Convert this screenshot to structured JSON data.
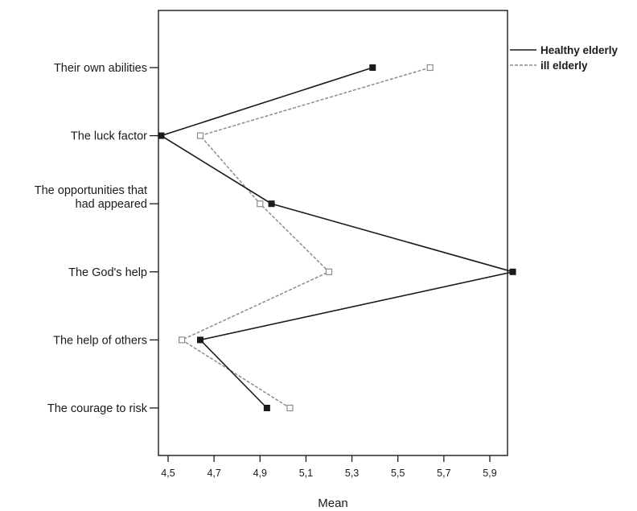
{
  "chart_data": {
    "type": "line",
    "orientation": "horizontal",
    "categories": [
      [
        "Their own abilities"
      ],
      [
        "The luck factor"
      ],
      [
        "The opportunities that",
        "had appeared"
      ],
      [
        "The God's help"
      ],
      [
        "The help of others"
      ],
      [
        "The courage to risk"
      ]
    ],
    "series": [
      {
        "name": "Healthy elderly",
        "color": "#1a1a1a",
        "line_style": "solid",
        "marker": "filled-square",
        "values": [
          5.39,
          4.47,
          4.95,
          6.0,
          4.64,
          4.93
        ]
      },
      {
        "name": "ill elderly",
        "color": "#8c8c8c",
        "line_style": "dashed",
        "marker": "open-square",
        "values": [
          5.64,
          4.64,
          4.9,
          5.2,
          4.56,
          5.03
        ]
      }
    ],
    "xlabel": "Mean",
    "xlim": [
      4.42,
      6.08
    ],
    "xticks": [
      4.5,
      4.7,
      4.9,
      5.1,
      5.3,
      5.5,
      5.7,
      5.9
    ],
    "xtick_labels": [
      "4,5",
      "4,7",
      "4,9",
      "5,1",
      "5,3",
      "5,5",
      "5,7",
      "5,9"
    ],
    "grid": false,
    "legend_position": "top-right-outside"
  }
}
